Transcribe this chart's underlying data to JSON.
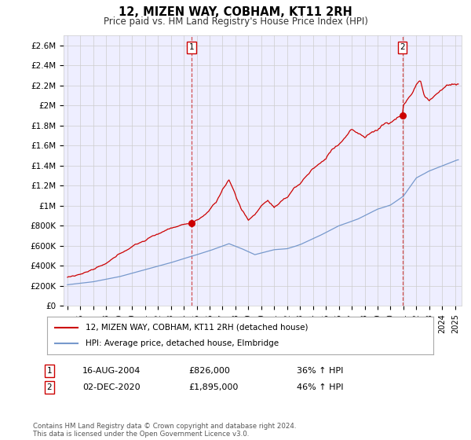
{
  "title": "12, MIZEN WAY, COBHAM, KT11 2RH",
  "subtitle": "Price paid vs. HM Land Registry's House Price Index (HPI)",
  "ylabel_ticks": [
    "£0",
    "£200K",
    "£400K",
    "£600K",
    "£800K",
    "£1M",
    "£1.2M",
    "£1.4M",
    "£1.6M",
    "£1.8M",
    "£2M",
    "£2.2M",
    "£2.4M",
    "£2.6M"
  ],
  "ytick_values": [
    0,
    200000,
    400000,
    600000,
    800000,
    1000000,
    1200000,
    1400000,
    1600000,
    1800000,
    2000000,
    2200000,
    2400000,
    2600000
  ],
  "ylim": [
    0,
    2700000
  ],
  "sale1_x": 2004.622,
  "sale1_y": 826000,
  "sale1_label": "1",
  "sale1_date": "16-AUG-2004",
  "sale1_price": "£826,000",
  "sale1_hpi": "36% ↑ HPI",
  "sale2_x": 2020.917,
  "sale2_y": 1895000,
  "sale2_label": "2",
  "sale2_date": "02-DEC-2020",
  "sale2_price": "£1,895,000",
  "sale2_hpi": "46% ↑ HPI",
  "line_color_red": "#cc0000",
  "line_color_blue": "#7799cc",
  "dashed_line_color": "#cc3333",
  "grid_color": "#cccccc",
  "bg_color": "#ffffff",
  "plot_bg_color": "#eeeeff",
  "legend_label_red": "12, MIZEN WAY, COBHAM, KT11 2RH (detached house)",
  "legend_label_blue": "HPI: Average price, detached house, Elmbridge",
  "footer": "Contains HM Land Registry data © Crown copyright and database right 2024.\nThis data is licensed under the Open Government Licence v3.0.",
  "xtick_years": [
    1995,
    1996,
    1997,
    1998,
    1999,
    2000,
    2001,
    2002,
    2003,
    2004,
    2005,
    2006,
    2007,
    2008,
    2009,
    2010,
    2011,
    2012,
    2013,
    2014,
    2015,
    2016,
    2017,
    2018,
    2019,
    2020,
    2021,
    2022,
    2023,
    2024,
    2025
  ],
  "xlim_left": 1994.7,
  "xlim_right": 2025.5
}
